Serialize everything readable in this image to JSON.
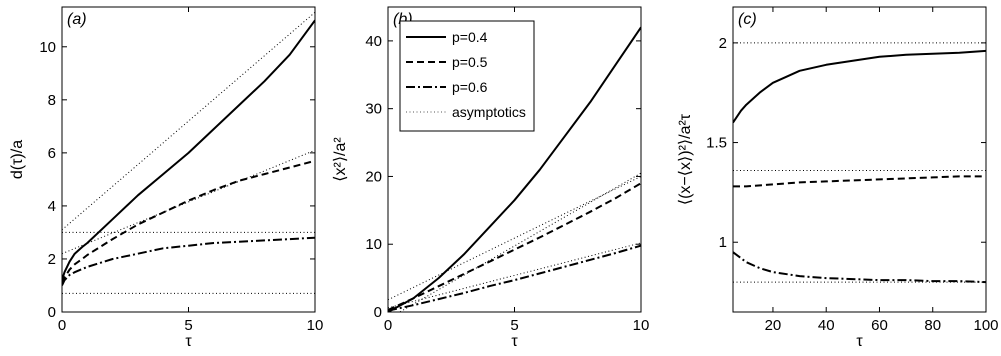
{
  "chart_data": [
    {
      "type": "line",
      "panel_label": "(a)",
      "xlabel": "τ",
      "ylabel": "d(τ)/a",
      "xlim": [
        0,
        10
      ],
      "ylim": [
        0,
        11.5
      ],
      "xticks": [
        0,
        5,
        10
      ],
      "yticks": [
        0,
        2,
        4,
        6,
        8,
        10
      ],
      "series": [
        {
          "style": "solid",
          "x": [
            0,
            0.1,
            0.3,
            0.5,
            0.8,
            1,
            2,
            3,
            4,
            5,
            6,
            7,
            8,
            9,
            10
          ],
          "y": [
            1.2,
            1.5,
            1.9,
            2.2,
            2.45,
            2.6,
            3.5,
            4.4,
            5.2,
            6.0,
            6.9,
            7.8,
            8.7,
            9.7,
            11.0
          ]
        },
        {
          "style": "dashed",
          "x": [
            0,
            0.1,
            0.3,
            0.5,
            0.8,
            1,
            2,
            3,
            4,
            5,
            6,
            7,
            8,
            9,
            10
          ],
          "y": [
            1.1,
            1.3,
            1.6,
            1.8,
            2.0,
            2.15,
            2.75,
            3.3,
            3.75,
            4.2,
            4.6,
            4.95,
            5.2,
            5.45,
            5.7
          ]
        },
        {
          "style": "dashdot",
          "x": [
            0,
            0.1,
            0.3,
            0.5,
            1,
            2,
            3,
            4,
            5,
            6,
            7,
            8,
            9,
            10
          ],
          "y": [
            1.0,
            1.2,
            1.4,
            1.5,
            1.7,
            2.0,
            2.2,
            2.4,
            2.5,
            2.6,
            2.65,
            2.7,
            2.75,
            2.8
          ]
        },
        {
          "style": "dotted",
          "x": [
            0,
            10
          ],
          "y": [
            3.1,
            11.3
          ]
        },
        {
          "style": "dotted",
          "x": [
            0,
            10
          ],
          "y": [
            2.2,
            6.1
          ]
        },
        {
          "style": "dotted",
          "x": [
            0,
            10
          ],
          "y": [
            3.0,
            3.0
          ]
        },
        {
          "style": "dotted",
          "x": [
            0,
            10
          ],
          "y": [
            0.7,
            0.7
          ]
        }
      ]
    },
    {
      "type": "line",
      "panel_label": "(b)",
      "xlabel": "τ",
      "ylabel": "⟨x²⟩/a²",
      "xlim": [
        0,
        10
      ],
      "ylim": [
        0,
        45
      ],
      "xticks": [
        0,
        5,
        10
      ],
      "yticks": [
        0,
        10,
        20,
        30,
        40
      ],
      "legend": [
        "p=0.4",
        "p=0.5",
        "p=0.6",
        "asymptotics"
      ],
      "legend_position": "top-left",
      "series": [
        {
          "name": "p=0.4",
          "style": "solid",
          "x": [
            0,
            1,
            2,
            3,
            4,
            5,
            6,
            7,
            8,
            9,
            10
          ],
          "y": [
            0,
            2.0,
            5.0,
            8.5,
            12.5,
            16.5,
            21.0,
            26.0,
            31.0,
            36.5,
            42.0
          ]
        },
        {
          "name": "p=0.5",
          "style": "dashed",
          "x": [
            0,
            1,
            2,
            3,
            4,
            5,
            6,
            7,
            8,
            9,
            10
          ],
          "y": [
            0.3,
            2.0,
            3.8,
            5.6,
            7.4,
            9.2,
            11.0,
            12.9,
            14.8,
            16.8,
            19.0
          ]
        },
        {
          "name": "p=0.6",
          "style": "dashdot",
          "x": [
            0,
            1,
            2,
            3,
            4,
            5,
            6,
            7,
            8,
            9,
            10
          ],
          "y": [
            0.2,
            1.0,
            1.9,
            2.8,
            3.8,
            4.7,
            5.7,
            6.7,
            7.7,
            8.7,
            9.8
          ]
        },
        {
          "name": "asymptotics",
          "style": "dotted",
          "x": [
            0,
            10
          ],
          "y": [
            1.8,
            20.0
          ]
        },
        {
          "style": "dotted",
          "x": [
            0,
            10
          ],
          "y": [
            0.6,
            10.2
          ]
        },
        {
          "style": "dotted",
          "x": [
            0,
            10
          ],
          "y": [
            -1.0,
            20.5
          ]
        }
      ]
    },
    {
      "type": "line",
      "panel_label": "(c)",
      "xlabel": "τ",
      "ylabel": "⟨(x−⟨x⟩)²⟩/a²τ",
      "xlim": [
        5,
        100
      ],
      "ylim": [
        0.65,
        2.18
      ],
      "xticks": [
        20,
        40,
        60,
        80,
        100
      ],
      "yticks": [
        1,
        1.5,
        2
      ],
      "series": [
        {
          "style": "solid",
          "x": [
            5,
            8,
            10,
            15,
            20,
            25,
            30,
            40,
            50,
            60,
            70,
            80,
            90,
            100
          ],
          "y": [
            1.6,
            1.66,
            1.69,
            1.75,
            1.8,
            1.83,
            1.86,
            1.89,
            1.91,
            1.93,
            1.94,
            1.945,
            1.95,
            1.96
          ]
        },
        {
          "style": "dashed",
          "x": [
            5,
            10,
            20,
            30,
            40,
            50,
            60,
            70,
            80,
            90,
            100
          ],
          "y": [
            1.28,
            1.28,
            1.29,
            1.3,
            1.305,
            1.31,
            1.315,
            1.32,
            1.325,
            1.33,
            1.33
          ]
        },
        {
          "style": "dashdot",
          "x": [
            5,
            8,
            10,
            15,
            20,
            30,
            40,
            50,
            60,
            70,
            80,
            90,
            100
          ],
          "y": [
            0.95,
            0.92,
            0.9,
            0.87,
            0.85,
            0.83,
            0.82,
            0.815,
            0.81,
            0.81,
            0.805,
            0.805,
            0.8
          ]
        },
        {
          "style": "dotted",
          "x": [
            5,
            100
          ],
          "y": [
            2.0,
            2.0
          ]
        },
        {
          "style": "dotted",
          "x": [
            5,
            100
          ],
          "y": [
            1.36,
            1.36
          ]
        },
        {
          "style": "dotted",
          "x": [
            5,
            100
          ],
          "y": [
            0.8,
            0.8
          ]
        }
      ]
    }
  ]
}
